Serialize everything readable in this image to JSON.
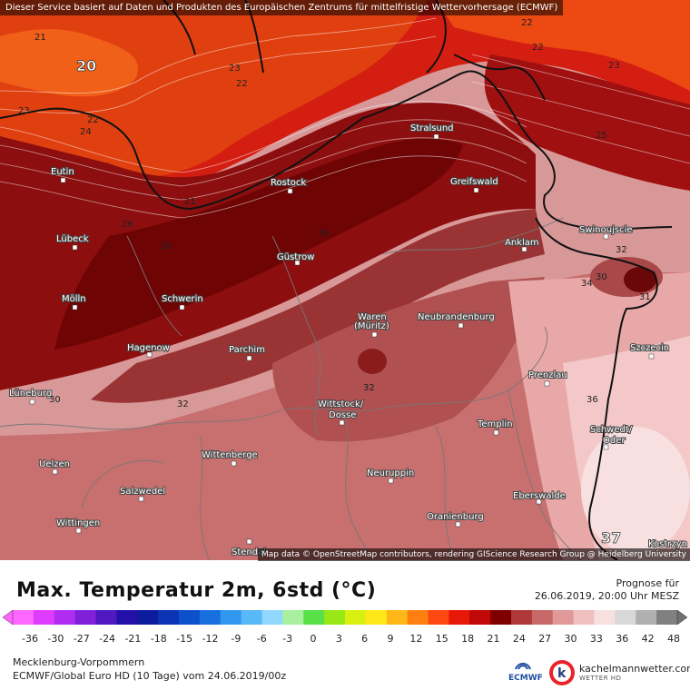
{
  "header": {
    "attribution_top": "Dieser Service basiert auf Daten und Produkten des Europäischen Zentrums für mittelfristige Wettervorhersage (ECMWF)",
    "attribution_bottom": "Map data © OpenStreetMap contributors, rendering GIScience Research Group @ Heidelberg University"
  },
  "title": "Max. Temperatur 2m, 6std (°C)",
  "forecast": {
    "label": "Prognose für",
    "datetime": "26.06.2019, 20:00 Uhr MESZ"
  },
  "footer": {
    "region": "Mecklenburg-Vorpommern",
    "model": "ECMWF/Global Euro HD (10 Tage) vom 24.06.2019/00z",
    "ecmwf_logo_text": "ECMWF",
    "brand": "kachelmannwetter.com",
    "brand_sub": "WETTER HD"
  },
  "scale": {
    "ticks": [
      "-36",
      "-30",
      "-27",
      "-24",
      "-21",
      "-18",
      "-15",
      "-12",
      "-9",
      "-6",
      "-3",
      "0",
      "3",
      "6",
      "9",
      "12",
      "15",
      "18",
      "21",
      "24",
      "27",
      "30",
      "33",
      "36",
      "42",
      "48"
    ],
    "colors": [
      "#ff66ff",
      "#e03cff",
      "#b02cf0",
      "#8020d8",
      "#5018c0",
      "#2410a8",
      "#0c1c9c",
      "#0a34b4",
      "#0c50cc",
      "#1870e0",
      "#3098f0",
      "#58b8f8",
      "#90d8ff",
      "#a8f0a0",
      "#58e048",
      "#98e818",
      "#d8f010",
      "#ffe818",
      "#ffb818",
      "#ff8010",
      "#ff4810",
      "#e81808",
      "#c00808",
      "#800000",
      "#b03838",
      "#c86868",
      "#e09898",
      "#f0c0c0",
      "#f8e0e0",
      "#d8d8d8",
      "#b0b0b0",
      "#808080"
    ]
  },
  "cities": [
    {
      "name": "Rostock"
    },
    {
      "name": "Stralsund"
    },
    {
      "name": "Greifswald"
    },
    {
      "name": "Eutin"
    },
    {
      "name": "Lübeck"
    },
    {
      "name": "Güstrow"
    },
    {
      "name": "Swinoujscie"
    },
    {
      "name": "Anklam"
    },
    {
      "name": "Mölln"
    },
    {
      "name": "Schwerin"
    },
    {
      "name": "Waren"
    },
    {
      "name": "(Müritz)"
    },
    {
      "name": "Neubrandenburg"
    },
    {
      "name": "Hagenow"
    },
    {
      "name": "Parchim"
    },
    {
      "name": "Szczecin"
    },
    {
      "name": "Prenzlau"
    },
    {
      "name": "Lüneburg"
    },
    {
      "name": "Wittstock/"
    },
    {
      "name": "Dosse"
    },
    {
      "name": "Templin"
    },
    {
      "name": "Schwedt/"
    },
    {
      "name": "Oder"
    },
    {
      "name": "Wittenberge"
    },
    {
      "name": "Uelzen"
    },
    {
      "name": "Neuruppin"
    },
    {
      "name": "Salzwedel"
    },
    {
      "name": "Eberswalde"
    },
    {
      "name": "Wittingen"
    },
    {
      "name": "Oranienburg"
    },
    {
      "name": "Stendal"
    },
    {
      "name": "Kostrzyn"
    }
  ],
  "values": {
    "max_label": "20",
    "max_label_se": "37",
    "iso": [
      "21",
      "22",
      "23",
      "24",
      "25",
      "26",
      "28",
      "30",
      "31",
      "32",
      "34",
      "36",
      "21",
      "22",
      "23",
      "24",
      "22",
      "23",
      "23",
      "25",
      "26",
      "28",
      "30",
      "32",
      "34",
      "36",
      "37",
      "24"
    ]
  }
}
